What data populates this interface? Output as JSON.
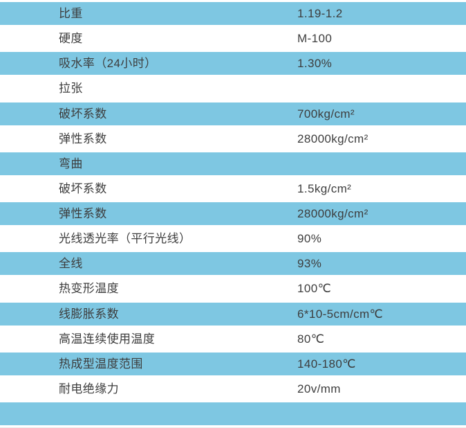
{
  "page": {
    "description_label": "material-properties-spec-table"
  },
  "colors": {
    "stripe": "#7ec7e2",
    "row_background": "#ffffff",
    "text": "#3d3d3d"
  },
  "table": {
    "rows": [
      {
        "label": "比重",
        "value": "1.19-1.2",
        "shaded": true
      },
      {
        "label": "硬度",
        "value": "M-100",
        "shaded": false
      },
      {
        "label": "吸水率（24小时）",
        "value": "1.30%",
        "shaded": true
      },
      {
        "label": "拉张",
        "value": "",
        "shaded": false
      },
      {
        "label": "破坏系数",
        "value": "700kg/cm²",
        "shaded": true
      },
      {
        "label": "弹性系数",
        "value": "28000kg/cm²",
        "shaded": false
      },
      {
        "label": "弯曲",
        "value": "",
        "shaded": true
      },
      {
        "label": "破坏系数",
        "value": "1.5kg/cm²",
        "shaded": false
      },
      {
        "label": "弹性系数",
        "value": "28000kg/cm²",
        "shaded": true
      },
      {
        "label": "光线透光率（平行光线）",
        "value": "90%",
        "shaded": false
      },
      {
        "label": "全线",
        "value": "93%",
        "shaded": true
      },
      {
        "label": "热变形温度",
        "value": "100℃",
        "shaded": false
      },
      {
        "label": "线膨胀系数",
        "value": "6*10-5cm/cm℃",
        "shaded": true
      },
      {
        "label": "高温连续使用温度",
        "value": "80℃",
        "shaded": false
      },
      {
        "label": "热成型温度范围",
        "value": "140-180℃",
        "shaded": true
      },
      {
        "label": "耐电绝缘力",
        "value": "20v/mm",
        "shaded": false
      },
      {
        "label": "",
        "value": "",
        "shaded": true
      }
    ]
  },
  "chart_data": {
    "type": "table",
    "columns": [
      "property",
      "value"
    ],
    "rows": [
      [
        "比重",
        "1.19-1.2"
      ],
      [
        "硬度",
        "M-100"
      ],
      [
        "吸水率（24小时）",
        "1.30%"
      ],
      [
        "拉张",
        ""
      ],
      [
        "破坏系数",
        "700kg/cm²"
      ],
      [
        "弹性系数",
        "28000kg/cm²"
      ],
      [
        "弯曲",
        ""
      ],
      [
        "破坏系数",
        "1.5kg/cm²"
      ],
      [
        "弹性系数",
        "28000kg/cm²"
      ],
      [
        "光线透光率（平行光线）",
        "90%"
      ],
      [
        "全线",
        "93%"
      ],
      [
        "热变形温度",
        "100℃"
      ],
      [
        "线膨胀系数",
        "6*10-5cm/cm℃"
      ],
      [
        "高温连续使用温度",
        "80℃"
      ],
      [
        "热成型温度范围",
        "140-180℃"
      ],
      [
        "耐电绝缘力",
        "20v/mm"
      ],
      [
        "",
        ""
      ]
    ],
    "layout_hints": {
      "striped": true,
      "stripe_pattern": "odd-rows-blue",
      "label_column_x": 85,
      "value_column_x": 430
    }
  }
}
